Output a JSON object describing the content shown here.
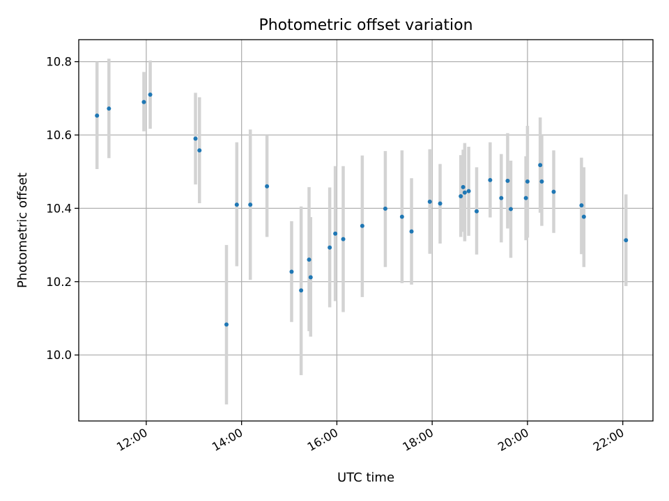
{
  "chart_data": {
    "type": "scatter",
    "title": "Photometric offset variation",
    "xlabel": "UTC time",
    "ylabel": "Photometric offset",
    "x_type": "time",
    "xlim": [
      "10:35",
      "22:38"
    ],
    "ylim": [
      9.82,
      10.86
    ],
    "x_ticks": [
      "12:00",
      "14:00",
      "16:00",
      "18:00",
      "20:00",
      "22:00"
    ],
    "y_ticks": [
      10.0,
      10.2,
      10.4,
      10.6,
      10.8
    ],
    "grid": true,
    "point_color": "#1f77b4",
    "errorbar_color": "#d3d3d3",
    "points": [
      {
        "x": "10:58",
        "y": 10.653,
        "ylow": 10.507,
        "yhigh": 10.8
      },
      {
        "x": "11:13",
        "y": 10.672,
        "ylow": 10.537,
        "yhigh": 10.808
      },
      {
        "x": "11:57",
        "y": 10.69,
        "ylow": 10.61,
        "yhigh": 10.772
      },
      {
        "x": "12:05",
        "y": 10.71,
        "ylow": 10.617,
        "yhigh": 10.803
      },
      {
        "x": "13:02",
        "y": 10.59,
        "ylow": 10.465,
        "yhigh": 10.715
      },
      {
        "x": "13:07",
        "y": 10.558,
        "ylow": 10.414,
        "yhigh": 10.703
      },
      {
        "x": "13:41",
        "y": 10.083,
        "ylow": 9.865,
        "yhigh": 10.3
      },
      {
        "x": "13:54",
        "y": 10.41,
        "ylow": 10.242,
        "yhigh": 10.58
      },
      {
        "x": "14:11",
        "y": 10.41,
        "ylow": 10.205,
        "yhigh": 10.615
      },
      {
        "x": "14:32",
        "y": 10.46,
        "ylow": 10.322,
        "yhigh": 10.598
      },
      {
        "x": "15:03",
        "y": 10.227,
        "ylow": 10.09,
        "yhigh": 10.365
      },
      {
        "x": "15:15",
        "y": 10.176,
        "ylow": 9.945,
        "yhigh": 10.405
      },
      {
        "x": "15:25",
        "y": 10.26,
        "ylow": 10.065,
        "yhigh": 10.458
      },
      {
        "x": "15:27",
        "y": 10.212,
        "ylow": 10.05,
        "yhigh": 10.376
      },
      {
        "x": "15:51",
        "y": 10.293,
        "ylow": 10.13,
        "yhigh": 10.457
      },
      {
        "x": "15:58",
        "y": 10.331,
        "ylow": 10.147,
        "yhigh": 10.515
      },
      {
        "x": "16:08",
        "y": 10.316,
        "ylow": 10.117,
        "yhigh": 10.515
      },
      {
        "x": "16:32",
        "y": 10.352,
        "ylow": 10.158,
        "yhigh": 10.544
      },
      {
        "x": "17:01",
        "y": 10.399,
        "ylow": 10.24,
        "yhigh": 10.556
      },
      {
        "x": "17:22",
        "y": 10.377,
        "ylow": 10.196,
        "yhigh": 10.558
      },
      {
        "x": "17:34",
        "y": 10.337,
        "ylow": 10.192,
        "yhigh": 10.482
      },
      {
        "x": "17:57",
        "y": 10.418,
        "ylow": 10.276,
        "yhigh": 10.561
      },
      {
        "x": "18:10",
        "y": 10.413,
        "ylow": 10.304,
        "yhigh": 10.521
      },
      {
        "x": "18:36",
        "y": 10.433,
        "ylow": 10.322,
        "yhigh": 10.545
      },
      {
        "x": "18:39",
        "y": 10.458,
        "ylow": 10.336,
        "yhigh": 10.56
      },
      {
        "x": "18:41",
        "y": 10.443,
        "ylow": 10.31,
        "yhigh": 10.578
      },
      {
        "x": "18:46",
        "y": 10.447,
        "ylow": 10.325,
        "yhigh": 10.568
      },
      {
        "x": "18:56",
        "y": 10.392,
        "ylow": 10.274,
        "yhigh": 10.512
      },
      {
        "x": "19:13",
        "y": 10.477,
        "ylow": 10.375,
        "yhigh": 10.58
      },
      {
        "x": "19:27",
        "y": 10.428,
        "ylow": 10.307,
        "yhigh": 10.548
      },
      {
        "x": "19:35",
        "y": 10.475,
        "ylow": 10.345,
        "yhigh": 10.605
      },
      {
        "x": "19:39",
        "y": 10.398,
        "ylow": 10.265,
        "yhigh": 10.53
      },
      {
        "x": "19:58",
        "y": 10.428,
        "ylow": 10.313,
        "yhigh": 10.542
      },
      {
        "x": "20:00",
        "y": 10.473,
        "ylow": 10.32,
        "yhigh": 10.625
      },
      {
        "x": "20:16",
        "y": 10.518,
        "ylow": 10.388,
        "yhigh": 10.648
      },
      {
        "x": "20:18",
        "y": 10.473,
        "ylow": 10.352,
        "yhigh": 10.6
      },
      {
        "x": "20:33",
        "y": 10.445,
        "ylow": 10.333,
        "yhigh": 10.558
      },
      {
        "x": "21:08",
        "y": 10.408,
        "ylow": 10.275,
        "yhigh": 10.538
      },
      {
        "x": "21:11",
        "y": 10.377,
        "ylow": 10.24,
        "yhigh": 10.512
      },
      {
        "x": "22:04",
        "y": 10.313,
        "ylow": 10.188,
        "yhigh": 10.438
      }
    ]
  }
}
